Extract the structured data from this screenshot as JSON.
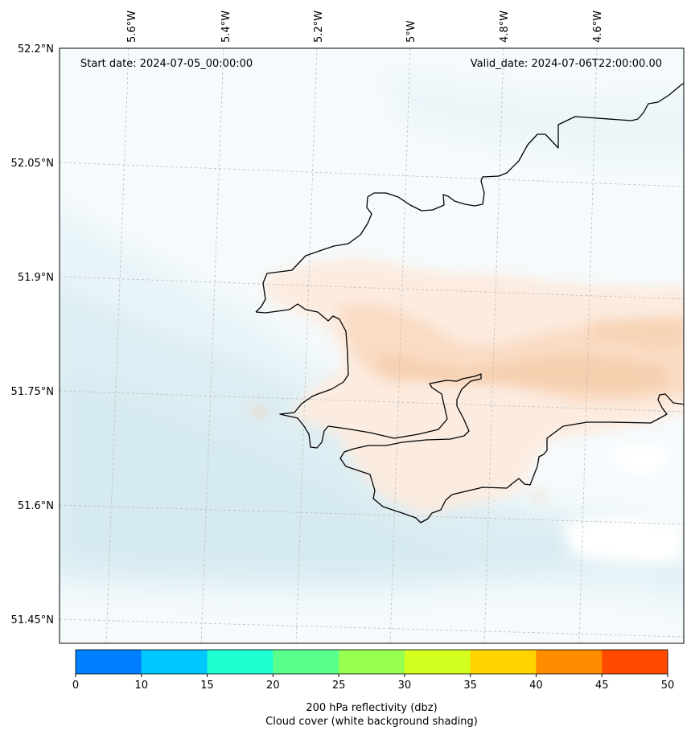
{
  "map": {
    "start_date_text": "Start date: 2024-07-05_00:00:00",
    "valid_date_text": "Valid_date: 2024-07-06T22:00:00.00",
    "lon_labels": [
      "5.6°W",
      "5.4°W",
      "5.2°W",
      "5°W",
      "4.8°W",
      "4.6°W"
    ],
    "lat_labels": [
      "52.2°N",
      "52.05°N",
      "51.9°N",
      "51.75°N",
      "51.6°N",
      "51.45°N"
    ]
  },
  "colorbar": {
    "ticks": [
      "0",
      "10",
      "15",
      "20",
      "25",
      "30",
      "35",
      "40",
      "45",
      "50"
    ],
    "colors": [
      "#0080ff",
      "#00c8ff",
      "#1effd2",
      "#5aff8c",
      "#96ff50",
      "#d2ff1e",
      "#ffd200",
      "#ff8c00",
      "#ff4b00"
    ],
    "label_line1": "200 hPa reflectivity (dbz)",
    "label_line2": "Cloud cover (white background shading)"
  },
  "palette": {
    "sea_light": "#f3f9fb",
    "sea_mid": "#e4f2f6",
    "sea_dark": "#d8ecf2",
    "land_light": "#fdf3ea",
    "land_mid": "#fbe3d0",
    "land_dark": "#f8d4b6",
    "grid": "#bbbbbb",
    "coast": "#000000"
  }
}
